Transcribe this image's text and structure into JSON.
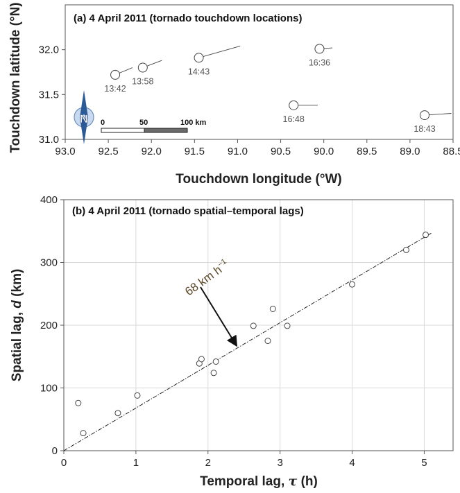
{
  "chart_data": [
    {
      "type": "scatter",
      "title": "(a) 4 April 2011 (tornado touchdown locations)",
      "xlabel": "Touchdown longitude (°W)",
      "ylabel": "Touchdown latitude (°N)",
      "xlim": [
        93.0,
        88.5
      ],
      "ylim": [
        31.0,
        32.5
      ],
      "x_reversed": true,
      "xticks": [
        "93.0",
        "92.5",
        "92.0",
        "91.5",
        "91.0",
        "90.5",
        "90.0",
        "89.5",
        "89.0",
        "88.5"
      ],
      "yticks": [
        "31.0",
        "31.5",
        "32.0"
      ],
      "grid": false,
      "points": [
        {
          "lon": 92.42,
          "lat": 31.72,
          "label": "13:42",
          "track_end": [
            92.22,
            31.8
          ]
        },
        {
          "lon": 92.1,
          "lat": 31.8,
          "label": "13:58",
          "track_end": [
            91.88,
            31.88
          ]
        },
        {
          "lon": 91.45,
          "lat": 31.91,
          "label": "14:43",
          "track_end": [
            90.97,
            32.04
          ]
        },
        {
          "lon": 90.05,
          "lat": 32.01,
          "label": "16:36",
          "track_end": [
            89.9,
            32.02
          ]
        },
        {
          "lon": 90.35,
          "lat": 31.38,
          "label": "16:48",
          "track_end": [
            90.07,
            31.38
          ]
        },
        {
          "lon": 88.83,
          "lat": 31.27,
          "label": "18:43",
          "track_end": [
            88.52,
            31.29
          ]
        }
      ],
      "north_arrow_label": "N",
      "scale_bar": {
        "labels": [
          "0",
          "50",
          "100 km"
        ]
      }
    },
    {
      "type": "scatter",
      "title": "(b) 4 April 2011 (tornado spatial–temporal lags)",
      "xlabel_main": "Temporal lag, ",
      "xlabel_symbol": "τ",
      "xlabel_unit": " (h)",
      "ylabel_main": "Spatial lag, ",
      "ylabel_symbol": "d",
      "ylabel_unit": " (km)",
      "xlim": [
        0,
        5.4
      ],
      "ylim": [
        0,
        400
      ],
      "xticks": [
        "0",
        "1",
        "2",
        "3",
        "4",
        "5"
      ],
      "yticks": [
        "0",
        "100",
        "200",
        "300",
        "400"
      ],
      "grid": true,
      "x": [
        0.2,
        0.27,
        0.75,
        1.02,
        1.88,
        1.91,
        2.08,
        2.11,
        2.63,
        2.83,
        2.9,
        3.1,
        4.0,
        4.75,
        5.02
      ],
      "y": [
        76,
        28,
        60,
        88,
        139,
        146,
        124,
        142,
        199,
        175,
        226,
        199,
        265,
        320,
        344
      ],
      "fit_line": {
        "slope": 68,
        "intercept": 0,
        "label_main": "68 km h",
        "label_sup": "−1"
      }
    }
  ]
}
